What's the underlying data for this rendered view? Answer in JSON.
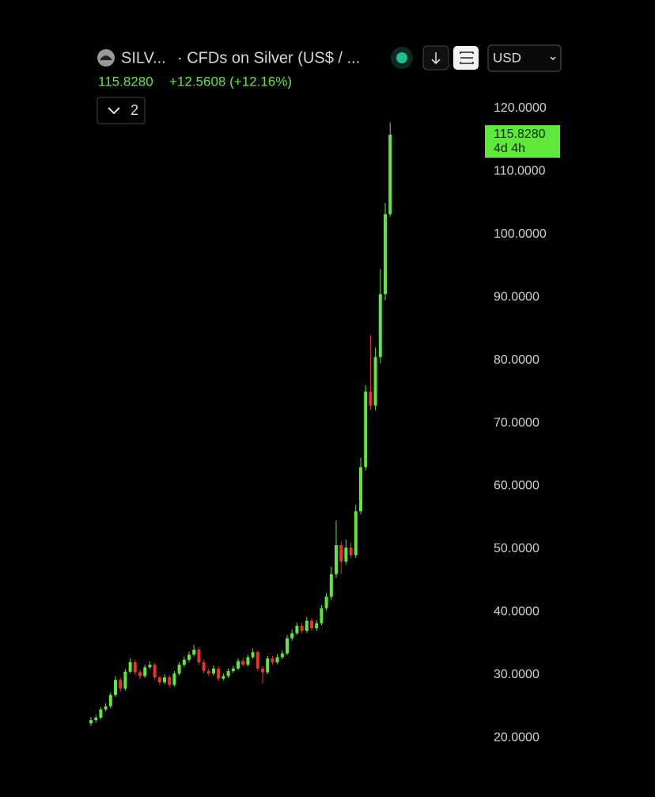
{
  "header": {
    "symbol": "SILV...",
    "description": "· CFDs on Silver (US$ / ...",
    "price": "115.8280",
    "change": "+12.5608 (+12.16%)",
    "indicator_count": "2",
    "currency": "USD"
  },
  "chart_data": {
    "type": "candlestick",
    "open": [
      22.3,
      22.8,
      23.2,
      24.5,
      25.0,
      26.8,
      29.2,
      27.8,
      30.5,
      32.0,
      30.4,
      29.8,
      31.2,
      31.6,
      29.6,
      28.8,
      29.6,
      28.4,
      30.2,
      31.6,
      32.4,
      33.2,
      34.0,
      32.0,
      30.6,
      30.2,
      31.0,
      29.4,
      29.8,
      30.6,
      31.0,
      32.2,
      31.6,
      32.8,
      33.6,
      31.0,
      30.4,
      32.6,
      32.0,
      32.8,
      33.4,
      35.8,
      36.6,
      37.8,
      37.0,
      38.6,
      37.4,
      38.2,
      40.6,
      42.4,
      46.0,
      50.6,
      48.0,
      50.2,
      49.0,
      56.0,
      63.0,
      75.0,
      72.8,
      80.5,
      90.5,
      103.2
    ],
    "high": [
      23.3,
      23.6,
      24.9,
      25.5,
      27.2,
      29.8,
      29.6,
      30.9,
      32.6,
      32.4,
      30.8,
      31.6,
      32.2,
      31.9,
      29.9,
      30.1,
      29.9,
      30.6,
      32.0,
      32.9,
      33.7,
      34.8,
      34.4,
      32.4,
      31.0,
      31.5,
      31.4,
      30.2,
      31.0,
      31.5,
      32.6,
      32.7,
      33.2,
      34.2,
      33.9,
      31.4,
      33.0,
      33.0,
      33.3,
      33.9,
      36.3,
      37.2,
      38.3,
      38.2,
      39.2,
      39.0,
      38.7,
      41.1,
      43.0,
      47.2,
      54.5,
      51.2,
      51.5,
      51.0,
      57.0,
      64.5,
      76.0,
      84.0,
      82.0,
      94.5,
      105.0,
      117.8
    ],
    "low": [
      21.9,
      22.4,
      22.9,
      24.2,
      24.7,
      26.5,
      27.3,
      27.5,
      30.2,
      30.0,
      29.3,
      29.5,
      30.9,
      29.2,
      28.3,
      28.5,
      28.0,
      28.1,
      29.9,
      31.2,
      32.0,
      32.9,
      31.6,
      30.2,
      29.8,
      29.9,
      29.0,
      29.1,
      29.5,
      30.3,
      30.7,
      31.3,
      31.3,
      32.5,
      30.6,
      28.6,
      30.1,
      31.6,
      31.7,
      32.5,
      33.1,
      35.4,
      36.3,
      36.6,
      36.7,
      37.0,
      37.0,
      37.9,
      40.2,
      41.9,
      45.4,
      46.0,
      47.5,
      48.5,
      48.6,
      55.5,
      62.5,
      72.0,
      72.0,
      79.5,
      89.5,
      102.8
    ],
    "close": [
      22.8,
      23.2,
      24.5,
      25.0,
      26.8,
      29.2,
      27.8,
      30.5,
      32.0,
      30.4,
      29.8,
      31.2,
      31.6,
      29.6,
      28.8,
      29.6,
      28.4,
      30.2,
      31.6,
      32.4,
      33.2,
      34.0,
      32.0,
      30.6,
      30.2,
      31.0,
      29.4,
      29.8,
      30.6,
      31.0,
      32.2,
      31.6,
      32.8,
      33.6,
      31.0,
      30.4,
      32.6,
      32.0,
      32.8,
      33.4,
      35.8,
      36.6,
      37.8,
      37.0,
      38.6,
      37.4,
      38.2,
      40.6,
      42.4,
      46.0,
      50.6,
      48.0,
      50.2,
      49.0,
      56.0,
      63.0,
      75.0,
      72.8,
      80.5,
      90.5,
      103.2,
      115.828
    ],
    "up_color": "#5ee83a",
    "down_color": "#e8322a",
    "ylim": [
      16,
      122
    ],
    "yticks": [
      {
        "value": 20,
        "label": "20.0000"
      },
      {
        "value": 30,
        "label": "30.0000"
      },
      {
        "value": 40,
        "label": "40.0000"
      },
      {
        "value": 50,
        "label": "50.0000"
      },
      {
        "value": 60,
        "label": "60.0000"
      },
      {
        "value": 70,
        "label": "70.0000"
      },
      {
        "value": 80,
        "label": "80.0000"
      },
      {
        "value": 90,
        "label": "90.0000"
      },
      {
        "value": 100,
        "label": "100.0000"
      },
      {
        "value": 110,
        "label": "110.0000"
      },
      {
        "value": 120,
        "label": "120.0000"
      }
    ],
    "last_price": {
      "value": 115.828,
      "label": "115.8280"
    },
    "countdown": "4d 4h"
  }
}
